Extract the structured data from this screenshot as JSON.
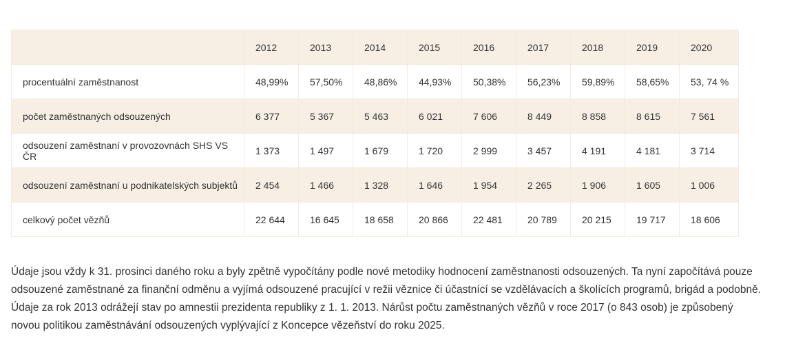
{
  "table": {
    "header": [
      "2012",
      "2013",
      "2014",
      "2015",
      "2016",
      "2017",
      "2018",
      "2019",
      "2020"
    ],
    "rows": [
      {
        "label": "procentuální zaměstnanost",
        "cells": [
          "48,99%",
          "57,50%",
          "48,86%",
          "44,93%",
          "50,38%",
          "56,23%",
          "59,89%",
          "58,65%",
          "53, 74 %"
        ]
      },
      {
        "label": "počet zaměstnaných odsouzených",
        "cells": [
          "6 377",
          "5 367",
          "5 463",
          "6 021",
          "7 606",
          "8 449",
          "8 858",
          "8 615",
          "7 561"
        ]
      },
      {
        "label": "odsouzení zaměstnaní v provozovnách SHS VS ČR",
        "cells": [
          "1 373",
          "1 497",
          "1 679",
          "1 720",
          "2 999",
          "3 457",
          "4 191",
          "4 181",
          "3 714"
        ]
      },
      {
        "label": "odsouzení zaměstnaní u podnikatelských subjektů",
        "cells": [
          "2 454",
          "1 466",
          "1 328",
          "1 646",
          "1 954",
          "2 265",
          "1 906",
          "1 605",
          "1 006"
        ]
      },
      {
        "label": "celkový počet vězňů",
        "cells": [
          "22 644",
          "16 645",
          "18 658",
          "20 866",
          "22 481",
          "20 789",
          "20 215",
          "19 717",
          "18 606"
        ]
      }
    ]
  },
  "note": {
    "lines": [
      "Údaje jsou vždy k 31. prosinci daného roku a byly zpětně vypočítány podle nové metodiky hodnocení zaměstnanosti odsouzených. Ta nyní započítává pouze",
      "odsouzené zaměstnané za finanční odměnu a vyjímá odsouzené pracující v režii věznice či účastnící se vzdělávacích a školících programů, brigád a podobně.",
      "Údaje za rok 2013 odrážejí stav po amnestii prezidenta republiky z 1. 1. 2013. Nárůst počtu zaměstnaných vězňů v roce 2017 (o 843 osob) je způsobený",
      "novou politikou zaměstnávání odsouzených vyplývající z Koncepce vězeňství do roku 2025."
    ]
  }
}
